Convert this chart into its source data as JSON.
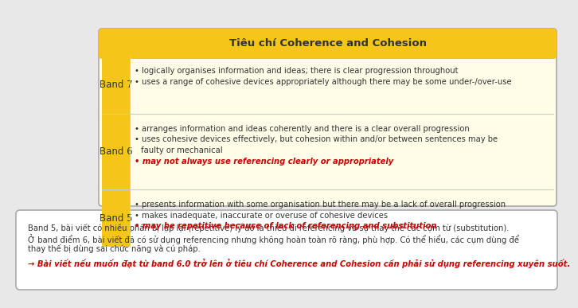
{
  "title": "Tiêu chí Coherence and Cohesion",
  "title_bg": "#F5C518",
  "table_bg": "#FFFDE7",
  "band_col_bg": "#F5C518",
  "outer_bg": "#E8E8E8",
  "rows": [
    {
      "band": "Band 7",
      "bullets_black": [
        "• logically organises information and ideas; there is clear progression throughout",
        "• uses a range of cohesive devices appropriately although there may be some under-/over-use"
      ],
      "bullets_red": []
    },
    {
      "band": "Band 6",
      "bullets_black": [
        "• arranges information and ideas coherently and there is a clear overall progression",
        "• uses cohesive devices effectively, but cohesion within and/or between sentences may be\n    faulty or mechanical"
      ],
      "bullets_red": [
        "• may not always use referencing clearly or appropriately"
      ]
    },
    {
      "band": "Band 5",
      "bullets_black": [
        "• presents information with some organisation but there may be a lack of overall progression",
        "• makes inadequate, inaccurate or overuse of cohesive devices"
      ],
      "bullets_red": [
        "• may be repetitive because of lack of referencing and substitution"
      ]
    }
  ],
  "note_lines_black": [
    "Band 5, bài viết có nhiều phần bị lặp lại (repetitive) lý do là thiếu đi referencing và sự thay thế các cụm từ (substitution).",
    "Ở band điểm 6, bài viết đã có sử dụng referencing nhưng không hoàn toàn rõ ràng, phù hợp. Có thể hiểu, các cụm dùng để",
    "thay thế bị dùng sai chức năng và cú pháp."
  ],
  "note_line_red": "→ Bài viết nếu muốn đạt từ band 6.0 trở lên ở tiêu chí Coherence and Cohesion cần phải sử dụng referencing xuyên suốt.",
  "text_color": "#333333",
  "red_color": "#CC0000",
  "divider_color": "#CCCCCC",
  "border_color": "#AAAAAA"
}
